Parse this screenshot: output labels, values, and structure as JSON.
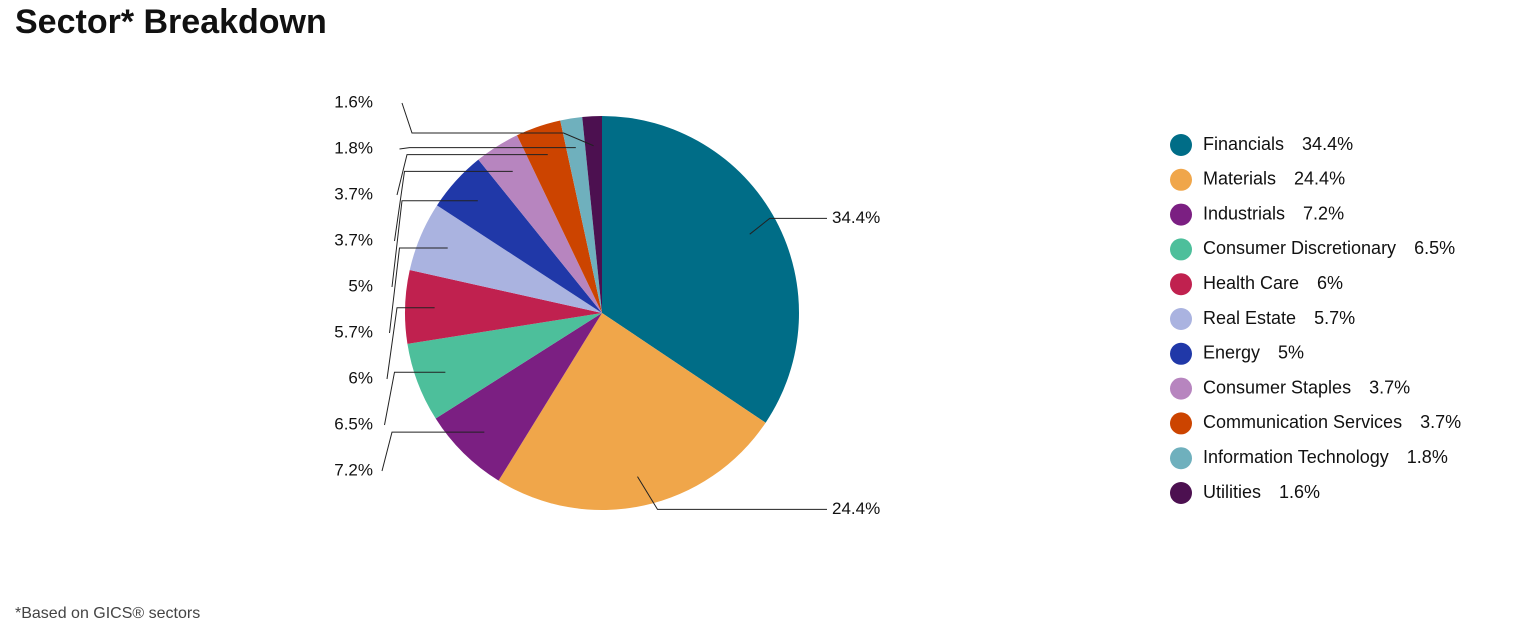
{
  "chart_data": {
    "type": "pie",
    "title": "Sector* Breakdown",
    "categories": [
      "Financials",
      "Materials",
      "Industrials",
      "Consumer Discretionary",
      "Health Care",
      "Real Estate",
      "Energy",
      "Consumer Staples",
      "Communication Services",
      "Information Technology",
      "Utilities"
    ],
    "values": [
      34.4,
      24.4,
      7.2,
      6.5,
      6,
      5.7,
      5,
      3.7,
      3.7,
      1.8,
      1.6
    ],
    "value_labels": [
      "34.4%",
      "24.4%",
      "7.2%",
      "6.5%",
      "6%",
      "5.7%",
      "5%",
      "3.7%",
      "3.7%",
      "1.8%",
      "1.6%"
    ],
    "colors": [
      "#006d87",
      "#f0a64a",
      "#7b1f82",
      "#4dbf9b",
      "#c0214f",
      "#aab3e0",
      "#2038a8",
      "#b785bf",
      "#cc4400",
      "#6fb0bd",
      "#4c1050"
    ],
    "footnote": "*Based on GICS® sectors"
  }
}
